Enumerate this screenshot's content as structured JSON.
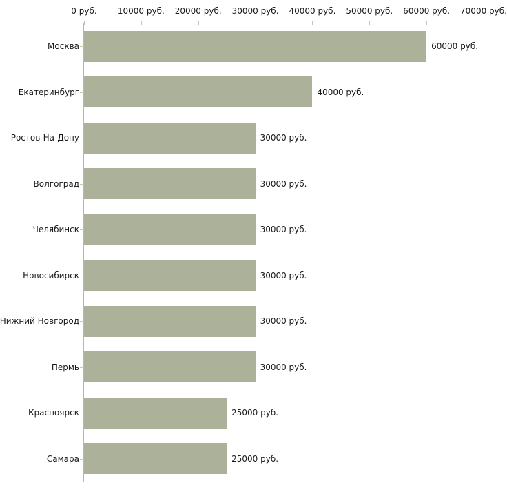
{
  "chart_data": {
    "type": "bar",
    "orientation": "horizontal",
    "title": "",
    "xlabel": "",
    "ylabel": "",
    "categories": [
      "Москва",
      "Екатеринбург",
      "Ростов-На-Дону",
      "Волгоград",
      "Челябинск",
      "Новосибирск",
      "Нижний Новгород",
      "Пермь",
      "Красноярск",
      "Самара"
    ],
    "values": [
      60000,
      40000,
      30000,
      30000,
      30000,
      30000,
      30000,
      30000,
      25000,
      25000
    ],
    "value_labels": [
      "60000 руб.",
      "40000 руб.",
      "30000 руб.",
      "30000 руб.",
      "30000 руб.",
      "30000 руб.",
      "30000 руб.",
      "30000 руб.",
      "25000 руб.",
      "25000 руб."
    ],
    "x_ticks": [
      0,
      10000,
      20000,
      30000,
      40000,
      50000,
      60000,
      70000
    ],
    "x_tick_labels": [
      "0 руб.",
      "10000 руб.",
      "20000 руб.",
      "30000 руб.",
      "40000 руб.",
      "50000 руб.",
      "60000 руб.",
      "70000 руб."
    ],
    "xlim": [
      0,
      70000
    ],
    "grid": false,
    "legend": false,
    "bar_color": "#abb299",
    "axis_line_color_top": "#c9c9c9",
    "axis_line_color_left": "#b5b5b5",
    "tick_color": "#c5c8a8",
    "text_color": "#1a1a1a",
    "background_color": "#ffffff"
  }
}
